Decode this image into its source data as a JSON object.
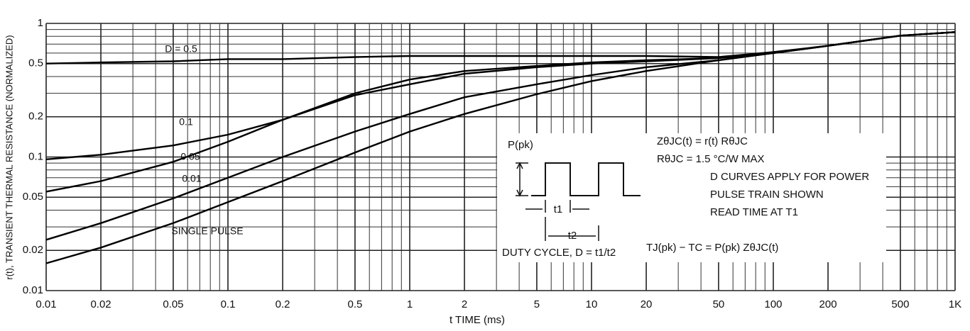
{
  "chart_data": {
    "type": "line",
    "xlabel": "t TIME (ms)",
    "ylabel": "r(t), TRANSIENT THERMAL RESISTANCE (NORMALIZED)",
    "log_x": true,
    "log_y": true,
    "grid": true,
    "xlim": [
      0.01,
      1000
    ],
    "ylim": [
      0.01,
      1
    ],
    "xticks": [
      0.01,
      0.02,
      0.05,
      0.1,
      0.2,
      0.5,
      1,
      2,
      5,
      10,
      20,
      50,
      100,
      200,
      500,
      {
        "value": 1000,
        "label": "1K"
      }
    ],
    "yticks": [
      0.01,
      0.02,
      0.05,
      0.1,
      0.2,
      0.5,
      1
    ],
    "xminor": [
      0.03,
      0.04,
      0.06,
      0.07,
      0.08,
      0.09,
      0.3,
      0.4,
      0.6,
      0.7,
      0.8,
      0.9,
      3,
      4,
      6,
      7,
      8,
      9,
      30,
      40,
      60,
      70,
      80,
      90,
      300,
      400,
      600,
      700,
      800,
      900
    ],
    "yminor": [
      0.03,
      0.04,
      0.06,
      0.07,
      0.08,
      0.09,
      0.3,
      0.4,
      0.6,
      0.7,
      0.8,
      0.9
    ],
    "x": [
      0.01,
      0.02,
      0.05,
      0.1,
      0.2,
      0.5,
      1,
      2,
      5,
      10,
      20,
      50,
      100,
      200,
      500,
      1000
    ],
    "series": [
      {
        "name": "D = 0.5",
        "color": "#000000",
        "values": [
          0.5,
          0.51,
          0.52,
          0.54,
          0.54,
          0.56,
          0.57,
          0.57,
          0.57,
          0.57,
          0.57,
          0.56,
          0.61,
          0.68,
          0.81,
          0.86
        ]
      },
      {
        "name": "0.1",
        "color": "#000000",
        "values": [
          0.096,
          0.104,
          0.122,
          0.147,
          0.19,
          0.29,
          0.35,
          0.42,
          0.47,
          0.5,
          0.52,
          0.55,
          0.6,
          0.68,
          0.81,
          0.86
        ]
      },
      {
        "name": "0.05",
        "color": "#000000",
        "values": [
          0.055,
          0.066,
          0.092,
          0.13,
          0.19,
          0.3,
          0.38,
          0.44,
          0.48,
          0.51,
          0.53,
          0.55,
          0.6,
          0.68,
          0.81,
          0.86
        ]
      },
      {
        "name": "0.01",
        "color": "#000000",
        "values": [
          0.024,
          0.032,
          0.049,
          0.07,
          0.1,
          0.155,
          0.21,
          0.28,
          0.35,
          0.41,
          0.47,
          0.53,
          0.6,
          0.68,
          0.81,
          0.86
        ]
      },
      {
        "name": "SINGLE PULSE",
        "color": "#000000",
        "values": [
          0.016,
          0.021,
          0.032,
          0.046,
          0.066,
          0.108,
          0.155,
          0.21,
          0.295,
          0.37,
          0.44,
          0.53,
          0.6,
          0.68,
          0.81,
          0.86
        ]
      }
    ],
    "annotations": [
      "P(pk)",
      "t1",
      "t2",
      "ZθJC(t) = r(t) RθJC",
      "RθJC = 1.5 °C/W MAX",
      "D CURVES APPLY FOR POWER",
      "PULSE TRAIN SHOWN",
      "READ TIME AT T1",
      "DUTY CYCLE, D = t1/t2",
      "TJ(pk) − TC = P(pk) ZθJC(t)"
    ]
  }
}
